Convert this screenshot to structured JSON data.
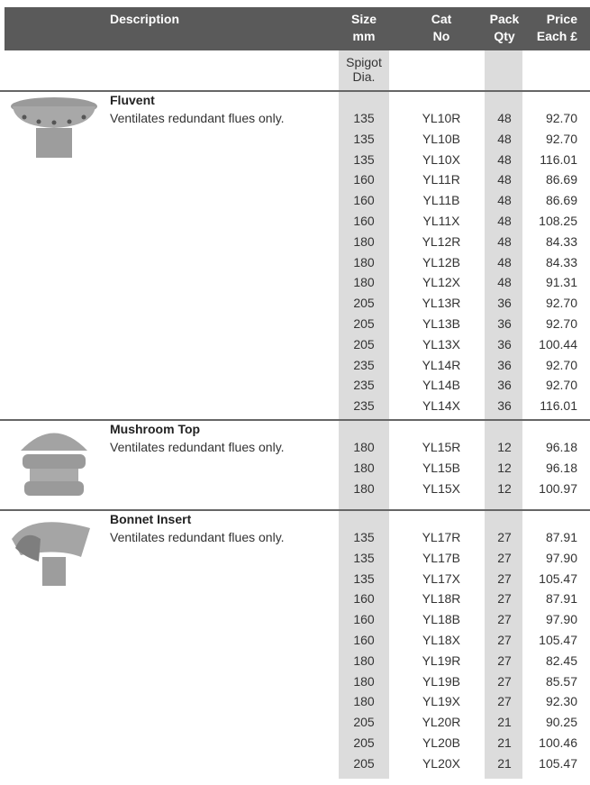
{
  "header": {
    "columns": [
      {
        "lines": [
          "Description"
        ]
      },
      {
        "lines": [
          "Size",
          "mm"
        ]
      },
      {
        "lines": [
          "Cat",
          "No"
        ]
      },
      {
        "lines": [
          "Pack",
          "Qty"
        ]
      },
      {
        "lines": [
          "Price",
          "Each £"
        ]
      }
    ]
  },
  "subheader": {
    "size": [
      "Spigot",
      "Dia."
    ]
  },
  "sections": [
    {
      "title": "Fluvent",
      "description": "Ventilates redundant flues only.",
      "rows": [
        [
          "135",
          "YL10R",
          "48",
          "92.70"
        ],
        [
          "135",
          "YL10B",
          "48",
          "92.70"
        ],
        [
          "135",
          "YL10X",
          "48",
          "116.01"
        ],
        [
          "160",
          "YL11R",
          "48",
          "86.69"
        ],
        [
          "160",
          "YL11B",
          "48",
          "86.69"
        ],
        [
          "160",
          "YL11X",
          "48",
          "108.25"
        ],
        [
          "180",
          "YL12R",
          "48",
          "84.33"
        ],
        [
          "180",
          "YL12B",
          "48",
          "84.33"
        ],
        [
          "180",
          "YL12X",
          "48",
          "91.31"
        ],
        [
          "205",
          "YL13R",
          "36",
          "92.70"
        ],
        [
          "205",
          "YL13B",
          "36",
          "92.70"
        ],
        [
          "205",
          "YL13X",
          "36",
          "100.44"
        ],
        [
          "235",
          "YL14R",
          "36",
          "92.70"
        ],
        [
          "235",
          "YL14B",
          "36",
          "92.70"
        ],
        [
          "235",
          "YL14X",
          "36",
          "116.01"
        ]
      ]
    },
    {
      "title": "Mushroom Top",
      "description": "Ventilates redundant flues only.",
      "rows": [
        [
          "180",
          "YL15R",
          "12",
          "96.18"
        ],
        [
          "180",
          "YL15B",
          "12",
          "96.18"
        ],
        [
          "180",
          "YL15X",
          "12",
          "100.97"
        ]
      ]
    },
    {
      "title": "Bonnet Insert",
      "description": "Ventilates redundant flues only.",
      "rows": [
        [
          "135",
          "YL17R",
          "27",
          "87.91"
        ],
        [
          "135",
          "YL17B",
          "27",
          "97.90"
        ],
        [
          "135",
          "YL17X",
          "27",
          "105.47"
        ],
        [
          "160",
          "YL18R",
          "27",
          "87.91"
        ],
        [
          "160",
          "YL18B",
          "27",
          "97.90"
        ],
        [
          "160",
          "YL18X",
          "27",
          "105.47"
        ],
        [
          "180",
          "YL19R",
          "27",
          "82.45"
        ],
        [
          "180",
          "YL19B",
          "27",
          "85.57"
        ],
        [
          "180",
          "YL19X",
          "27",
          "92.30"
        ],
        [
          "205",
          "YL20R",
          "21",
          "90.25"
        ],
        [
          "205",
          "YL20B",
          "21",
          "100.46"
        ],
        [
          "205",
          "YL20X",
          "21",
          "105.47"
        ]
      ]
    }
  ]
}
